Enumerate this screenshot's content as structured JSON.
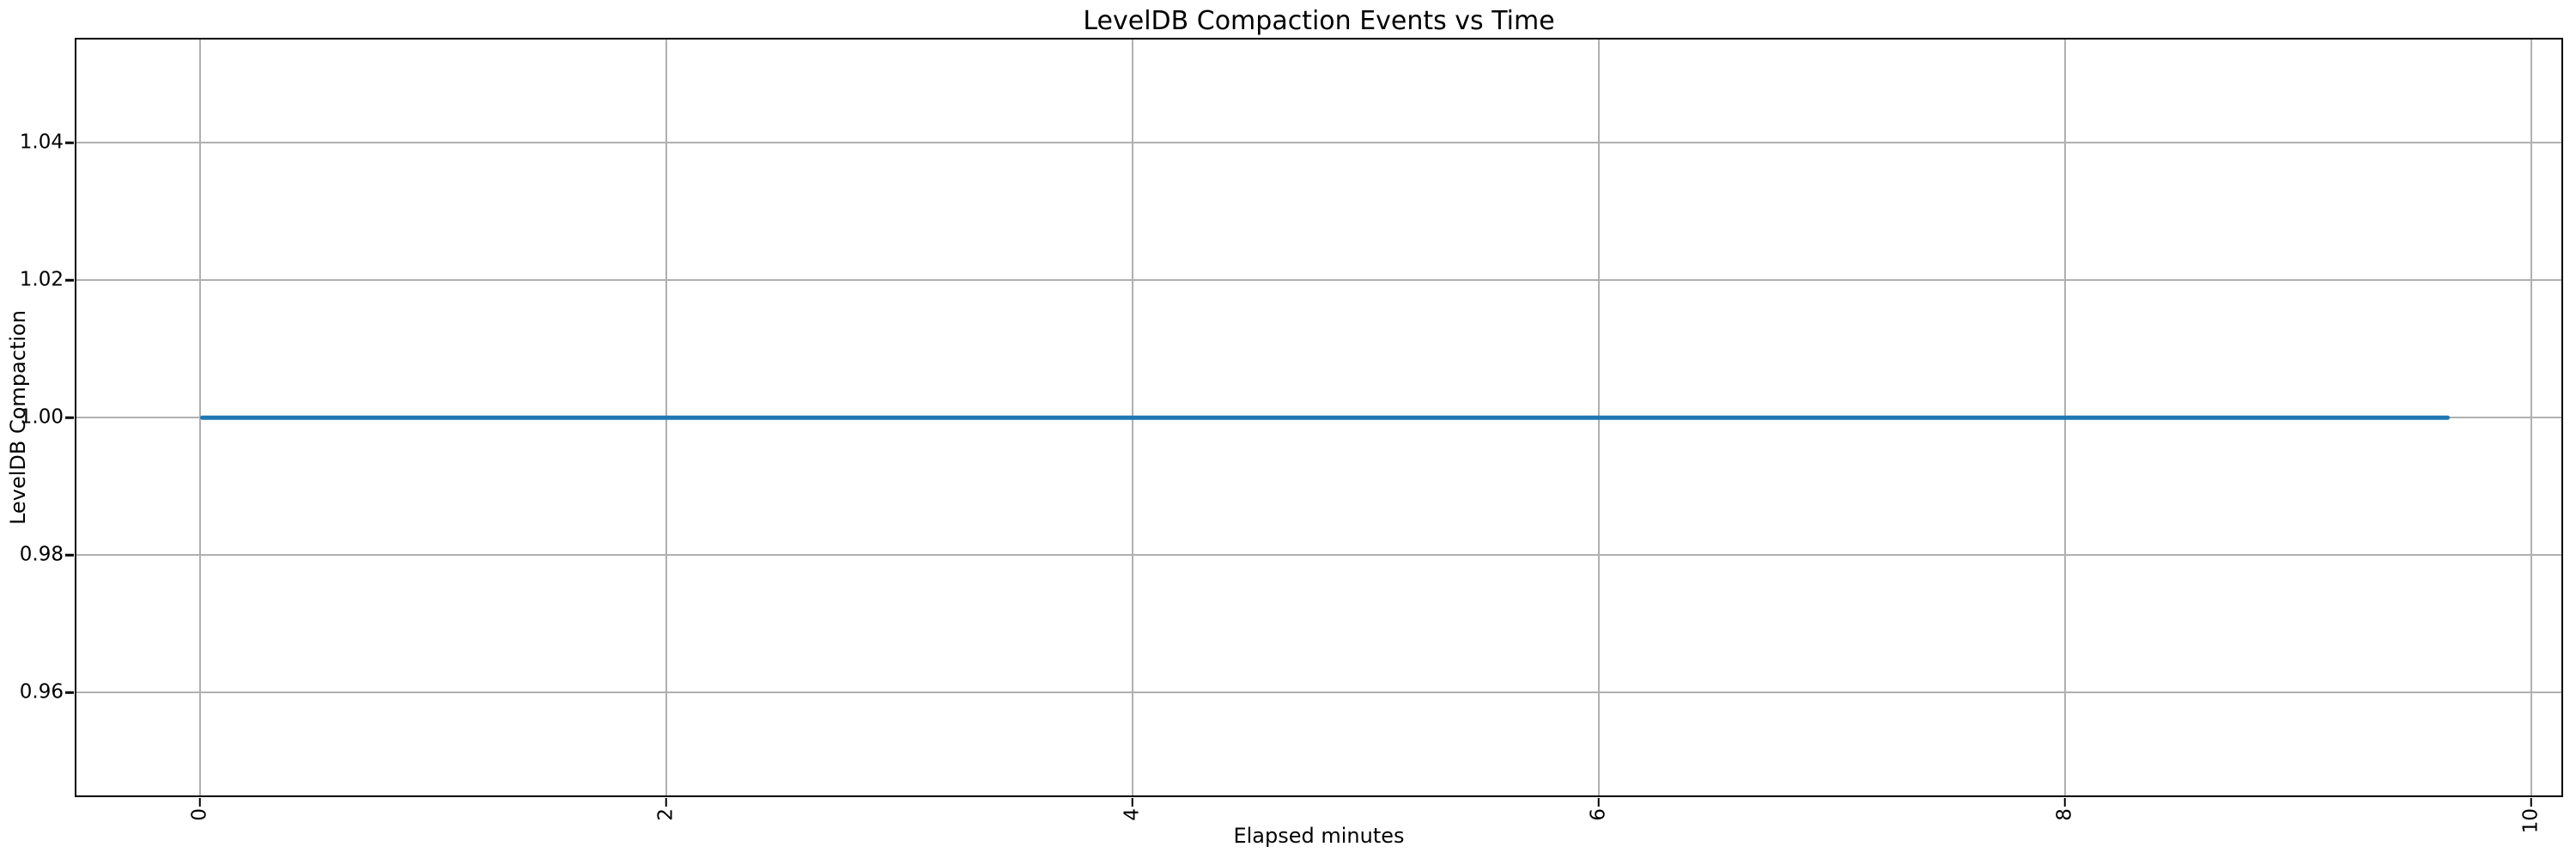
{
  "chart_data": {
    "type": "line",
    "title": "LevelDB Compaction Events vs Time",
    "xlabel": "Elapsed minutes",
    "ylabel": "LevelDB Compaction",
    "x": [
      0.0,
      9.65
    ],
    "series": [
      {
        "name": "LevelDB Compaction",
        "values": [
          1.0,
          1.0
        ]
      }
    ],
    "xlim": [
      -0.53,
      10.13
    ],
    "ylim": [
      0.945,
      1.055
    ],
    "xticks": [
      0,
      2,
      4,
      6,
      8,
      10
    ],
    "xtick_labels": [
      "0",
      "2",
      "4",
      "6",
      "8",
      "10"
    ],
    "xtick_rotation": 90,
    "yticks": [
      0.96,
      0.98,
      1.0,
      1.02,
      1.04
    ],
    "ytick_labels": [
      "0.96",
      "0.98",
      "1.00",
      "1.02",
      "1.04"
    ],
    "grid": true,
    "legend": "none",
    "colors": {
      "line": "#1f77b4",
      "grid": "#b0b0b0",
      "spine": "#000000",
      "text": "#000000",
      "background": "#ffffff"
    }
  }
}
